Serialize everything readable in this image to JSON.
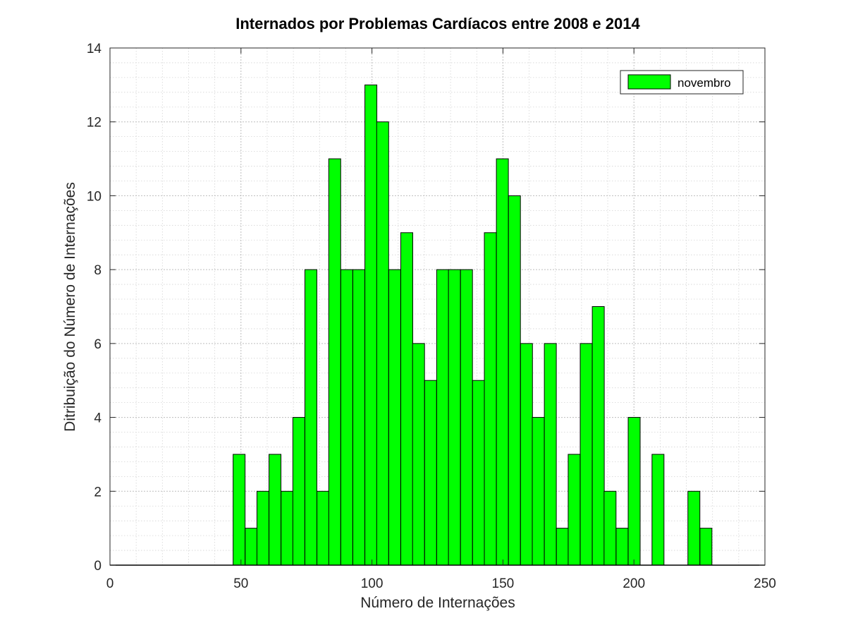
{
  "chart_data": {
    "type": "bar",
    "title": "Internados por Problemas Cardíacos entre 2008 e 2014",
    "xlabel": "Número de Internações",
    "ylabel": "Ditribuição do Número de Internações",
    "xlim": [
      0,
      250
    ],
    "ylim": [
      0,
      14
    ],
    "xticks": [
      "0",
      "50",
      "100",
      "150",
      "200",
      "250"
    ],
    "yticks": [
      "0",
      "2",
      "4",
      "6",
      "8",
      "10",
      "12",
      "14"
    ],
    "grid": true,
    "minor_grid": true,
    "legend_position": "top-right",
    "bar_color": "#00ff00",
    "bar_edge_color": "#000000",
    "bin_width": 4.57,
    "series": [
      {
        "name": "novembro",
        "bins": [
          {
            "x_start": 47.0,
            "count": 3
          },
          {
            "x_start": 51.6,
            "count": 1
          },
          {
            "x_start": 56.1,
            "count": 2
          },
          {
            "x_start": 60.7,
            "count": 3
          },
          {
            "x_start": 65.3,
            "count": 2
          },
          {
            "x_start": 69.8,
            "count": 4
          },
          {
            "x_start": 74.4,
            "count": 8
          },
          {
            "x_start": 79.0,
            "count": 2
          },
          {
            "x_start": 83.5,
            "count": 11
          },
          {
            "x_start": 88.1,
            "count": 8
          },
          {
            "x_start": 92.7,
            "count": 8
          },
          {
            "x_start": 97.3,
            "count": 13
          },
          {
            "x_start": 101.8,
            "count": 12
          },
          {
            "x_start": 106.4,
            "count": 8
          },
          {
            "x_start": 111.0,
            "count": 9
          },
          {
            "x_start": 115.5,
            "count": 6
          },
          {
            "x_start": 120.1,
            "count": 5
          },
          {
            "x_start": 124.7,
            "count": 8
          },
          {
            "x_start": 129.2,
            "count": 8
          },
          {
            "x_start": 133.8,
            "count": 8
          },
          {
            "x_start": 138.4,
            "count": 5
          },
          {
            "x_start": 142.9,
            "count": 9
          },
          {
            "x_start": 147.5,
            "count": 11
          },
          {
            "x_start": 152.1,
            "count": 10
          },
          {
            "x_start": 156.7,
            "count": 6
          },
          {
            "x_start": 161.2,
            "count": 4
          },
          {
            "x_start": 165.8,
            "count": 6
          },
          {
            "x_start": 170.4,
            "count": 1
          },
          {
            "x_start": 174.9,
            "count": 3
          },
          {
            "x_start": 179.5,
            "count": 6
          },
          {
            "x_start": 184.1,
            "count": 7
          },
          {
            "x_start": 188.6,
            "count": 2
          },
          {
            "x_start": 193.2,
            "count": 1
          },
          {
            "x_start": 197.8,
            "count": 4
          },
          {
            "x_start": 206.9,
            "count": 3
          },
          {
            "x_start": 220.6,
            "count": 2
          },
          {
            "x_start": 225.2,
            "count": 1
          }
        ]
      }
    ]
  }
}
